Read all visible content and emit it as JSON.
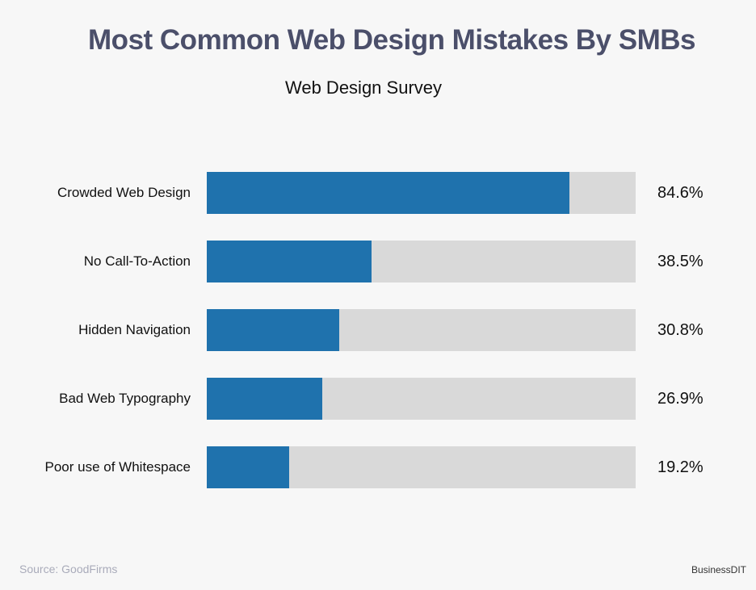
{
  "chart_data": {
    "type": "bar",
    "orientation": "horizontal",
    "title": "Most Common Web Design Mistakes By SMBs",
    "subtitle": "Web Design Survey",
    "categories": [
      "Crowded Web Design",
      "No Call-To-Action",
      "Hidden Navigation",
      "Bad Web Typography",
      "Poor use of Whitespace"
    ],
    "values": [
      84.6,
      38.5,
      30.8,
      26.9,
      19.2
    ],
    "value_labels": [
      "84.6%",
      "38.5%",
      "30.8%",
      "26.9%",
      "19.2%"
    ],
    "xlim": [
      0,
      100
    ],
    "grid": false,
    "colors": {
      "bar": "#1f72ad",
      "track": "#d9d9d9"
    }
  },
  "footer": {
    "source": "Source: GoodFirms",
    "brand": "BusinessDIT"
  }
}
